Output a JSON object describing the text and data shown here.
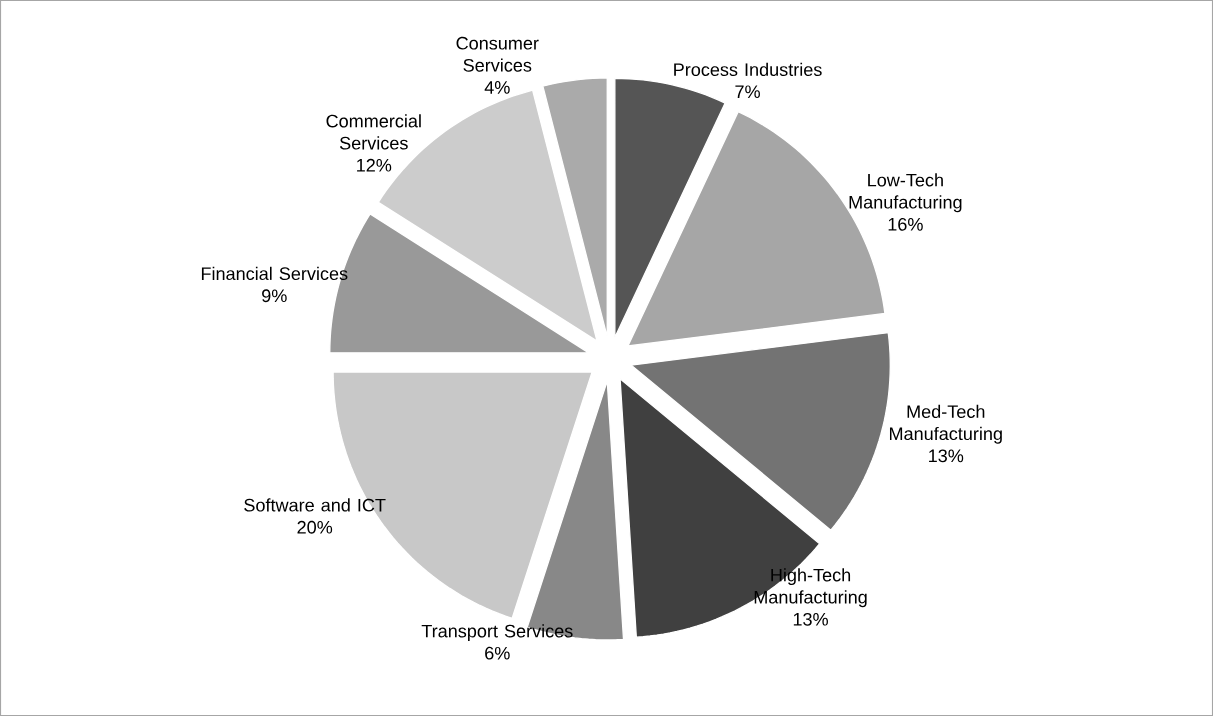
{
  "chart_data": {
    "type": "pie",
    "categories": [
      "Process Industries",
      "Low-Tech Manufacturing",
      "Med-Tech Manufacturing",
      "High-Tech Manufacturing",
      "Transport Services",
      "Software and ICT",
      "Financial Services",
      "Commercial Services",
      "Consumer Services"
    ],
    "values": [
      7,
      16,
      13,
      13,
      6,
      20,
      9,
      12,
      4
    ],
    "value_labels": [
      "7%",
      "16%",
      "13%",
      "13%",
      "6%",
      "20%",
      "9%",
      "12%",
      "4%"
    ],
    "colors": [
      "#555555",
      "#a6a6a6",
      "#737373",
      "#404040",
      "#888888",
      "#c8c8c8",
      "#999999",
      "#cccccc",
      "#aaaaaa"
    ]
  }
}
